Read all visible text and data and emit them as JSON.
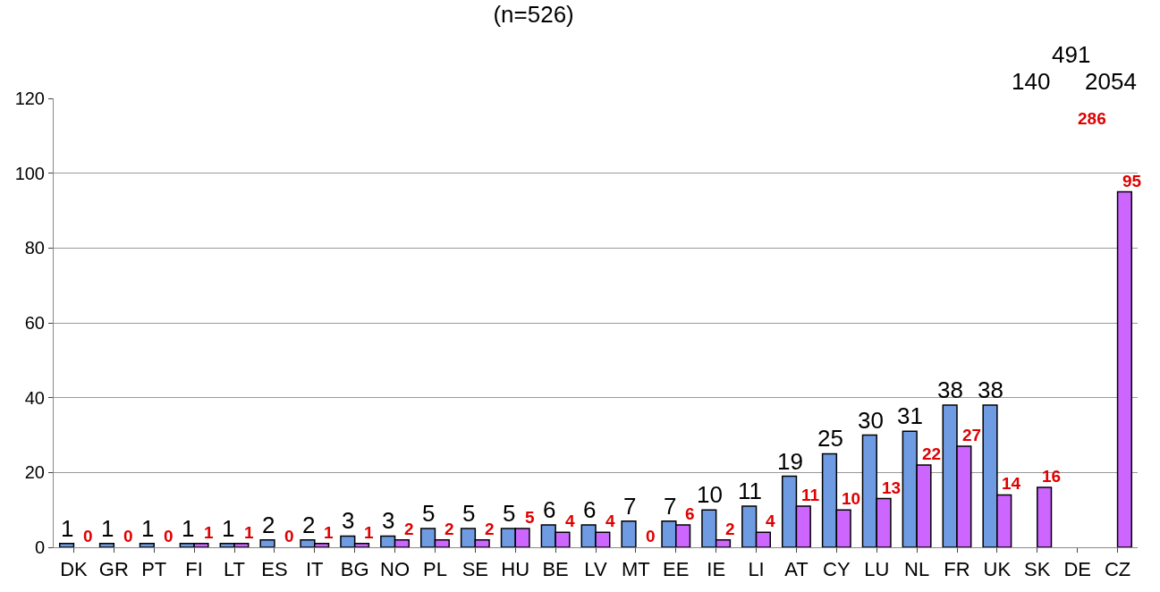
{
  "chart_data": {
    "type": "bar",
    "title": "(n=526)",
    "categories": [
      "DK",
      "GR",
      "PT",
      "FI",
      "LT",
      "ES",
      "IT",
      "BG",
      "NO",
      "PL",
      "SE",
      "HU",
      "BE",
      "LV",
      "MT",
      "EE",
      "IE",
      "LI",
      "AT",
      "CY",
      "LU",
      "NL",
      "FR",
      "UK",
      "SK",
      "DE",
      "CZ"
    ],
    "series": [
      {
        "color": "#6f9be3",
        "values": [
          1,
          1,
          1,
          1,
          1,
          2,
          2,
          3,
          3,
          5,
          5,
          5,
          6,
          6,
          7,
          7,
          10,
          11,
          19,
          25,
          30,
          31,
          38,
          38,
          null,
          null,
          null
        ],
        "value_labels": [
          "1",
          "1",
          "1",
          "1",
          "1",
          "2",
          "2",
          "3",
          "3",
          "5",
          "5",
          "5",
          "6",
          "6",
          "7",
          "7",
          "10",
          "11",
          "19",
          "25",
          "30",
          "31",
          "38",
          "38",
          "140",
          "491",
          "2054"
        ]
      },
      {
        "color": "#cc66ff",
        "values": [
          0,
          0,
          0,
          1,
          1,
          0,
          1,
          1,
          2,
          2,
          2,
          5,
          4,
          4,
          0,
          6,
          2,
          4,
          11,
          10,
          13,
          22,
          27,
          14,
          16,
          null,
          95
        ],
        "value_labels": [
          "0",
          "0",
          "0",
          "1",
          "1",
          "0",
          "1",
          "1",
          "2",
          "2",
          "2",
          "5",
          "4",
          "4",
          "0",
          "6",
          "2",
          "4",
          "11",
          "10",
          "13",
          "22",
          "27",
          "14",
          "16",
          "286",
          "95"
        ]
      }
    ],
    "ylim": [
      0,
      120
    ],
    "yticks": [
      0,
      20,
      40,
      60,
      80,
      100,
      120
    ],
    "grid": "y",
    "legend": false
  }
}
